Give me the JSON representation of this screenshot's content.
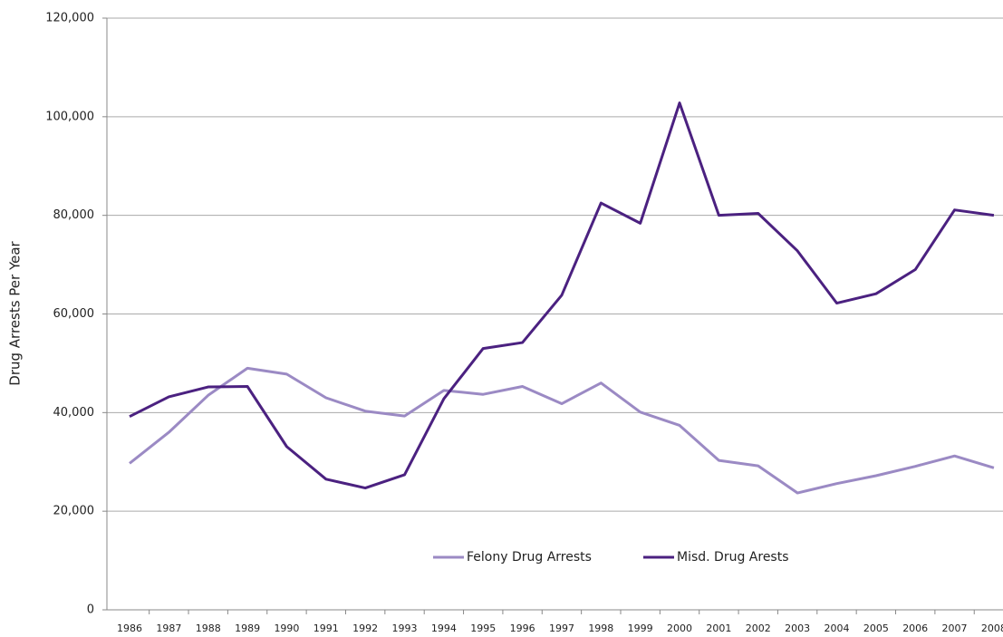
{
  "chart_data": {
    "type": "line",
    "y_label": "Drug Arrests Per Year",
    "categories": [
      "1986",
      "1987",
      "1988",
      "1989",
      "1990",
      "1991",
      "1992",
      "1993",
      "1994",
      "1995",
      "1996",
      "1997",
      "1998",
      "1999",
      "2000",
      "2001",
      "2002",
      "2003",
      "2004",
      "2005",
      "2006",
      "2007",
      "2008"
    ],
    "series": [
      {
        "name": "Felony Drug Arrests",
        "color": "#9b8ac4",
        "values": [
          29700,
          36000,
          43500,
          49000,
          47800,
          43000,
          40300,
          39300,
          44500,
          43700,
          45300,
          41800,
          46000,
          40100,
          37400,
          30300,
          29200,
          23700,
          25600,
          27200,
          29100,
          31200,
          28800
        ]
      },
      {
        "name": "Misd. Drug Arests",
        "color": "#4b2180",
        "values": [
          39200,
          43200,
          45200,
          45300,
          33100,
          26500,
          24700,
          27400,
          42800,
          53000,
          54200,
          63800,
          82500,
          78400,
          102800,
          80000,
          80400,
          72800,
          62200,
          64100,
          69000,
          81100,
          80000
        ]
      }
    ],
    "ylim": [
      0,
      120000
    ],
    "yticks": [
      0,
      {
        "value": 20000,
        "label": "20,000"
      },
      {
        "value": 40000,
        "label": "40,000"
      },
      {
        "value": 60000,
        "label": "60,000"
      },
      {
        "value": 80000,
        "label": "80,000"
      },
      {
        "value": 100000,
        "label": "100,000"
      },
      {
        "value": 120000,
        "label": "120,000"
      }
    ],
    "grid": true
  }
}
